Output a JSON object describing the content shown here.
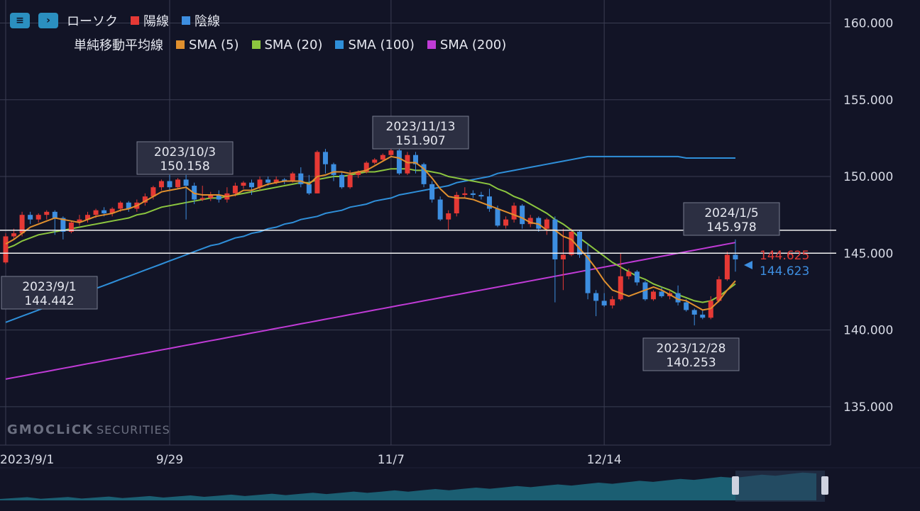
{
  "legend": {
    "candle": "ローソク",
    "up": "陽線",
    "down": "陰線",
    "sma_title": "単純移動平均線",
    "sma": [
      {
        "label": "SMA (5)",
        "color": "#e0902e"
      },
      {
        "label": "SMA (20)",
        "color": "#8cc63f"
      },
      {
        "label": "SMA (100)",
        "color": "#2f8fd9"
      },
      {
        "label": "SMA (200)",
        "color": "#c03bd6"
      }
    ]
  },
  "colors": {
    "up": "#e53935",
    "down": "#3d8ee0",
    "grid": "#3a3d52",
    "background": "#121426"
  },
  "watermark": {
    "brand": "GMOCLiCK",
    "sub": "SECURITIES"
  },
  "chart_data": {
    "type": "candlestick",
    "y_axis": {
      "ticks": [
        "135.000",
        "140.000",
        "145.000",
        "150.000",
        "155.000",
        "160.000"
      ],
      "range": [
        132.5,
        161.5
      ]
    },
    "x_axis": {
      "ticks": [
        "2023/9/1",
        "9/29",
        "11/7",
        "12/14"
      ]
    },
    "annotations": [
      {
        "date": "2023/9/1",
        "value": "144.442"
      },
      {
        "date": "2023/10/3",
        "value": "150.158"
      },
      {
        "date": "2023/11/13",
        "value": "151.907"
      },
      {
        "date": "2024/1/5",
        "value": "145.978"
      },
      {
        "date": "2023/12/28",
        "value": "140.253"
      }
    ],
    "price_labels": [
      {
        "value": "144.625",
        "color": "#e53935"
      },
      {
        "value": "144.623",
        "color": "#3d8ee0"
      }
    ],
    "horizontal_lines": [
      146.5,
      145.0
    ],
    "candles": [
      [
        144.4,
        146.1,
        144.3,
        146.3
      ],
      [
        146.1,
        146.3,
        145.9,
        146.6
      ],
      [
        146.3,
        147.5,
        146.1,
        147.7
      ],
      [
        147.5,
        147.2,
        146.9,
        147.7
      ],
      [
        147.2,
        147.5,
        147.0,
        147.6
      ],
      [
        147.5,
        147.7,
        147.2,
        147.8
      ],
      [
        147.7,
        147.3,
        146.2,
        147.8
      ],
      [
        147.3,
        146.4,
        145.9,
        147.4
      ],
      [
        146.4,
        147.0,
        146.3,
        147.1
      ],
      [
        147.0,
        147.2,
        146.8,
        147.5
      ],
      [
        147.2,
        147.5,
        147.0,
        147.7
      ],
      [
        147.5,
        147.8,
        147.3,
        147.9
      ],
      [
        147.8,
        147.6,
        147.4,
        148.0
      ],
      [
        147.6,
        147.9,
        147.4,
        148.0
      ],
      [
        147.9,
        148.3,
        147.7,
        148.4
      ],
      [
        148.3,
        147.9,
        147.7,
        148.4
      ],
      [
        147.9,
        148.3,
        147.7,
        148.5
      ],
      [
        148.3,
        148.7,
        148.1,
        148.9
      ],
      [
        148.7,
        149.3,
        148.5,
        149.4
      ],
      [
        149.3,
        149.7,
        149.1,
        149.8
      ],
      [
        149.7,
        149.3,
        149.1,
        150.1
      ],
      [
        149.3,
        149.8,
        149.2,
        149.9
      ],
      [
        149.8,
        149.4,
        147.2,
        150.1
      ],
      [
        149.4,
        148.5,
        148.2,
        149.6
      ],
      [
        148.5,
        148.6,
        148.4,
        149.4
      ],
      [
        148.6,
        148.8,
        148.4,
        149.0
      ],
      [
        148.8,
        148.5,
        148.3,
        149.1
      ],
      [
        148.5,
        148.9,
        148.3,
        149.3
      ],
      [
        148.9,
        149.4,
        148.7,
        149.6
      ],
      [
        149.4,
        149.6,
        149.2,
        149.7
      ],
      [
        149.6,
        149.3,
        148.8,
        149.8
      ],
      [
        149.3,
        149.8,
        149.1,
        150.0
      ],
      [
        149.8,
        149.6,
        149.4,
        150.0
      ],
      [
        149.6,
        149.8,
        149.5,
        150.0
      ],
      [
        149.8,
        149.7,
        149.5,
        149.9
      ],
      [
        149.7,
        150.2,
        149.6,
        150.3
      ],
      [
        150.2,
        149.5,
        149.3,
        150.6
      ],
      [
        149.5,
        148.9,
        148.8,
        150.1
      ],
      [
        148.9,
        151.6,
        148.9,
        151.7
      ],
      [
        151.6,
        150.8,
        150.2,
        151.8
      ],
      [
        150.8,
        150.1,
        149.7,
        150.9
      ],
      [
        150.1,
        149.3,
        149.2,
        150.3
      ],
      [
        149.3,
        150.1,
        149.2,
        150.4
      ],
      [
        150.1,
        150.3,
        149.9,
        150.4
      ],
      [
        150.3,
        150.9,
        150.2,
        151.0
      ],
      [
        150.9,
        151.1,
        150.8,
        151.2
      ],
      [
        151.1,
        151.4,
        151.0,
        151.5
      ],
      [
        151.4,
        151.7,
        151.3,
        151.9
      ],
      [
        151.7,
        150.2,
        150.1,
        151.8
      ],
      [
        150.2,
        151.4,
        150.1,
        151.6
      ],
      [
        151.4,
        150.8,
        150.2,
        151.6
      ],
      [
        150.8,
        149.5,
        149.3,
        150.9
      ],
      [
        149.5,
        148.5,
        148.3,
        149.7
      ],
      [
        148.5,
        147.2,
        147.1,
        148.7
      ],
      [
        147.2,
        147.6,
        146.5,
        147.8
      ],
      [
        147.6,
        148.8,
        147.4,
        149.0
      ],
      [
        148.8,
        148.9,
        148.6,
        149.3
      ],
      [
        148.9,
        148.8,
        148.6,
        149.1
      ],
      [
        148.8,
        148.7,
        148.5,
        149.0
      ],
      [
        148.7,
        147.9,
        147.7,
        149.2
      ],
      [
        147.9,
        146.8,
        146.7,
        148.1
      ],
      [
        146.8,
        147.2,
        146.6,
        147.4
      ],
      [
        147.2,
        148.1,
        147.0,
        148.3
      ],
      [
        148.1,
        146.9,
        146.6,
        148.2
      ],
      [
        146.9,
        147.3,
        146.7,
        147.5
      ],
      [
        147.3,
        146.6,
        146.4,
        147.4
      ],
      [
        146.6,
        147.2,
        146.2,
        147.3
      ],
      [
        147.2,
        144.6,
        141.8,
        147.4
      ],
      [
        144.6,
        144.9,
        142.6,
        146.6
      ],
      [
        144.9,
        146.4,
        144.8,
        146.6
      ],
      [
        146.4,
        144.9,
        144.7,
        146.5
      ],
      [
        144.9,
        142.4,
        142.0,
        145.6
      ],
      [
        142.4,
        141.9,
        140.9,
        142.6
      ],
      [
        141.9,
        141.6,
        141.5,
        142.4
      ],
      [
        141.6,
        142.0,
        141.4,
        142.2
      ],
      [
        142.0,
        143.5,
        141.9,
        145.0
      ],
      [
        143.5,
        143.8,
        143.3,
        144.0
      ],
      [
        143.8,
        143.1,
        142.9,
        143.9
      ],
      [
        143.1,
        142.0,
        141.9,
        143.2
      ],
      [
        142.0,
        142.5,
        141.9,
        142.6
      ],
      [
        142.5,
        142.2,
        142.1,
        142.8
      ],
      [
        142.2,
        142.4,
        142.0,
        142.6
      ],
      [
        142.4,
        141.8,
        141.6,
        142.9
      ],
      [
        141.8,
        141.3,
        141.2,
        142.0
      ],
      [
        141.3,
        141.0,
        140.3,
        141.4
      ],
      [
        141.0,
        140.8,
        140.7,
        141.3
      ],
      [
        140.8,
        141.9,
        140.7,
        142.2
      ],
      [
        141.9,
        143.3,
        141.8,
        143.5
      ],
      [
        143.3,
        144.9,
        143.2,
        145.1
      ],
      [
        144.9,
        144.6,
        143.8,
        145.9
      ]
    ],
    "sma5": [
      145.6,
      145.9,
      146.3,
      146.7,
      146.9,
      147.1,
      147.3,
      147.2,
      147.1,
      147.0,
      147.2,
      147.4,
      147.5,
      147.6,
      147.8,
      147.9,
      148.1,
      148.4,
      148.7,
      149.0,
      149.1,
      149.2,
      149.3,
      148.9,
      148.8,
      148.8,
      148.8,
      148.7,
      148.8,
      149.1,
      149.1,
      149.3,
      149.5,
      149.6,
      149.7,
      149.7,
      149.7,
      149.5,
      150.0,
      150.1,
      150.3,
      150.3,
      150.2,
      150.3,
      150.4,
      150.7,
      151.0,
      151.3,
      151.2,
      150.9,
      150.9,
      150.5,
      149.9,
      149.2,
      148.7,
      148.6,
      148.6,
      148.5,
      148.3,
      148.1,
      147.9,
      147.7,
      147.5,
      147.3,
      147.0,
      146.9,
      146.5,
      146.5,
      146.1,
      145.9,
      145.3,
      144.7,
      144.0,
      143.2,
      142.6,
      142.4,
      142.2,
      142.4,
      142.6,
      142.8,
      142.6,
      142.3,
      142.0,
      141.9,
      141.6,
      141.3,
      141.4,
      141.9,
      142.6,
      143.2
    ],
    "sma20": [
      145.3,
      145.5,
      145.8,
      146.0,
      146.2,
      146.3,
      146.4,
      146.5,
      146.6,
      146.7,
      146.8,
      146.9,
      147.0,
      147.1,
      147.2,
      147.3,
      147.5,
      147.6,
      147.8,
      148.0,
      148.1,
      148.2,
      148.3,
      148.4,
      148.5,
      148.6,
      148.6,
      148.7,
      148.8,
      148.9,
      149.0,
      149.1,
      149.2,
      149.3,
      149.4,
      149.5,
      149.6,
      149.6,
      149.8,
      149.9,
      150.0,
      150.0,
      150.1,
      150.2,
      150.3,
      150.3,
      150.4,
      150.5,
      150.5,
      150.5,
      150.4,
      150.4,
      150.3,
      150.2,
      150.0,
      149.9,
      149.8,
      149.7,
      149.6,
      149.5,
      149.2,
      149.0,
      148.7,
      148.5,
      148.2,
      147.9,
      147.6,
      147.2,
      146.9,
      146.5,
      146.0,
      145.6,
      145.2,
      144.8,
      144.4,
      144.1,
      143.8,
      143.5,
      143.3,
      143.0,
      142.8,
      142.6,
      142.3,
      142.1,
      141.9,
      141.8,
      141.9,
      142.2,
      142.6,
      143.0
    ],
    "sma100": [
      140.5,
      140.7,
      140.9,
      141.1,
      141.3,
      141.5,
      141.7,
      141.9,
      142.1,
      142.3,
      142.5,
      142.7,
      142.9,
      143.1,
      143.3,
      143.5,
      143.7,
      143.9,
      144.1,
      144.3,
      144.5,
      144.7,
      144.9,
      145.1,
      145.3,
      145.5,
      145.6,
      145.8,
      146.0,
      146.1,
      146.3,
      146.4,
      146.6,
      146.7,
      146.9,
      147.0,
      147.2,
      147.3,
      147.4,
      147.6,
      147.7,
      147.8,
      148.0,
      148.1,
      148.2,
      148.4,
      148.5,
      148.6,
      148.8,
      148.9,
      149.0,
      149.1,
      149.2,
      149.3,
      149.4,
      149.6,
      149.7,
      149.8,
      149.9,
      150.0,
      150.2,
      150.3,
      150.4,
      150.5,
      150.6,
      150.7,
      150.8,
      150.9,
      151.0,
      151.1,
      151.2,
      151.3,
      151.3,
      151.3,
      151.3,
      151.3,
      151.3,
      151.3,
      151.3,
      151.3,
      151.3,
      151.3,
      151.3,
      151.2,
      151.2,
      151.2,
      151.2,
      151.2,
      151.2,
      151.2
    ],
    "sma200": [
      136.8,
      136.9,
      137.0,
      137.1,
      137.2,
      137.3,
      137.4,
      137.5,
      137.6,
      137.7,
      137.8,
      137.9,
      138.0,
      138.1,
      138.2,
      138.3,
      138.4,
      138.5,
      138.6,
      138.7,
      138.8,
      138.9,
      139.0,
      139.1,
      139.2,
      139.3,
      139.4,
      139.5,
      139.6,
      139.7,
      139.8,
      139.9,
      140.0,
      140.1,
      140.2,
      140.3,
      140.4,
      140.5,
      140.6,
      140.7,
      140.8,
      140.9,
      141.0,
      141.1,
      141.2,
      141.3,
      141.4,
      141.5,
      141.6,
      141.7,
      141.8,
      141.9,
      142.0,
      142.1,
      142.2,
      142.3,
      142.4,
      142.5,
      142.6,
      142.7,
      142.8,
      142.9,
      143.0,
      143.1,
      143.2,
      143.3,
      143.4,
      143.5,
      143.6,
      143.7,
      143.8,
      143.9,
      144.0,
      144.1,
      144.2,
      144.3,
      144.4,
      144.5,
      144.6,
      144.7,
      144.8,
      144.9,
      145.0,
      145.1,
      145.2,
      145.3,
      145.4,
      145.5,
      145.6,
      145.7
    ]
  }
}
